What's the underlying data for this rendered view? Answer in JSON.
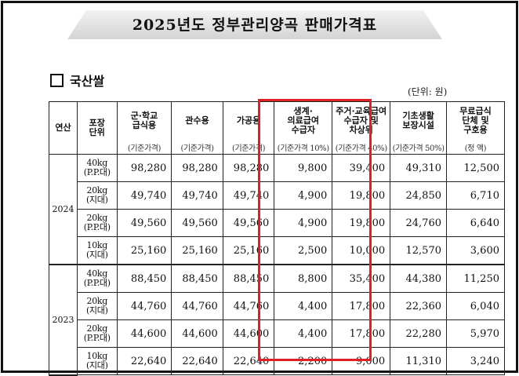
{
  "title": "2025년도 정부관리양곡 판매가격표",
  "section_title": "국산쌀",
  "unit_label": "(단위: 원)",
  "headers": {
    "year": "연산",
    "package": [
      "포장",
      "단위"
    ],
    "columns": [
      {
        "label": [
          "군·학교",
          "급식용"
        ],
        "sub": "(기준가격)"
      },
      {
        "label": [
          "관수용"
        ],
        "sub": "(기준가격)"
      },
      {
        "label": [
          "가공용"
        ],
        "sub": "(기준가격)"
      },
      {
        "label": [
          "생계·",
          "의료급여",
          "수급자"
        ],
        "sub": "(기준가격 10%)"
      },
      {
        "label": [
          "주거·교육급여",
          "수급자 및",
          "차상위"
        ],
        "sub": "(기준가격 40%)"
      },
      {
        "label": [
          "기초생활",
          "보장시설"
        ],
        "sub": "(기준가격 50%)"
      },
      {
        "label": [
          "무료급식",
          "단체 및",
          "구호용"
        ],
        "sub": "(정      액)"
      }
    ]
  },
  "groups": [
    {
      "year": "2024",
      "rows": [
        {
          "pkg": [
            "40kg",
            "(P.P.대)"
          ],
          "values": [
            "98,280",
            "98,280",
            "98,280",
            "9,800",
            "39,400",
            "49,310",
            "12,500"
          ]
        },
        {
          "pkg": [
            "20kg",
            "(지대)"
          ],
          "values": [
            "49,740",
            "49,740",
            "49,740",
            "4,900",
            "19,800",
            "24,850",
            "6,710"
          ]
        },
        {
          "pkg": [
            "20kg",
            "(P.P.대)"
          ],
          "values": [
            "49,560",
            "49,560",
            "49,560",
            "4,900",
            "19,800",
            "24,760",
            "6,640"
          ]
        },
        {
          "pkg": [
            "10kg",
            "(지대)"
          ],
          "values": [
            "25,160",
            "25,160",
            "25,160",
            "2,500",
            "10,000",
            "12,570",
            "3,600"
          ]
        }
      ]
    },
    {
      "year": "2023",
      "rows": [
        {
          "pkg": [
            "40kg",
            "(P.P.대)"
          ],
          "values": [
            "88,450",
            "88,450",
            "88,450",
            "8,800",
            "35,400",
            "44,380",
            "11,250"
          ]
        },
        {
          "pkg": [
            "20kg",
            "(지대)"
          ],
          "values": [
            "44,760",
            "44,760",
            "44,760",
            "4,400",
            "17,800",
            "22,360",
            "6,040"
          ]
        },
        {
          "pkg": [
            "20kg",
            "(P.P.대)"
          ],
          "values": [
            "44,600",
            "44,600",
            "44,600",
            "4,400",
            "17,800",
            "22,280",
            "5,970"
          ]
        },
        {
          "pkg": [
            "10kg",
            "(지대)"
          ],
          "values": [
            "22,640",
            "22,640",
            "22,640",
            "2,200",
            "9,000",
            "11,310",
            "3,240"
          ]
        }
      ]
    }
  ],
  "highlight_color": "#e01f26"
}
